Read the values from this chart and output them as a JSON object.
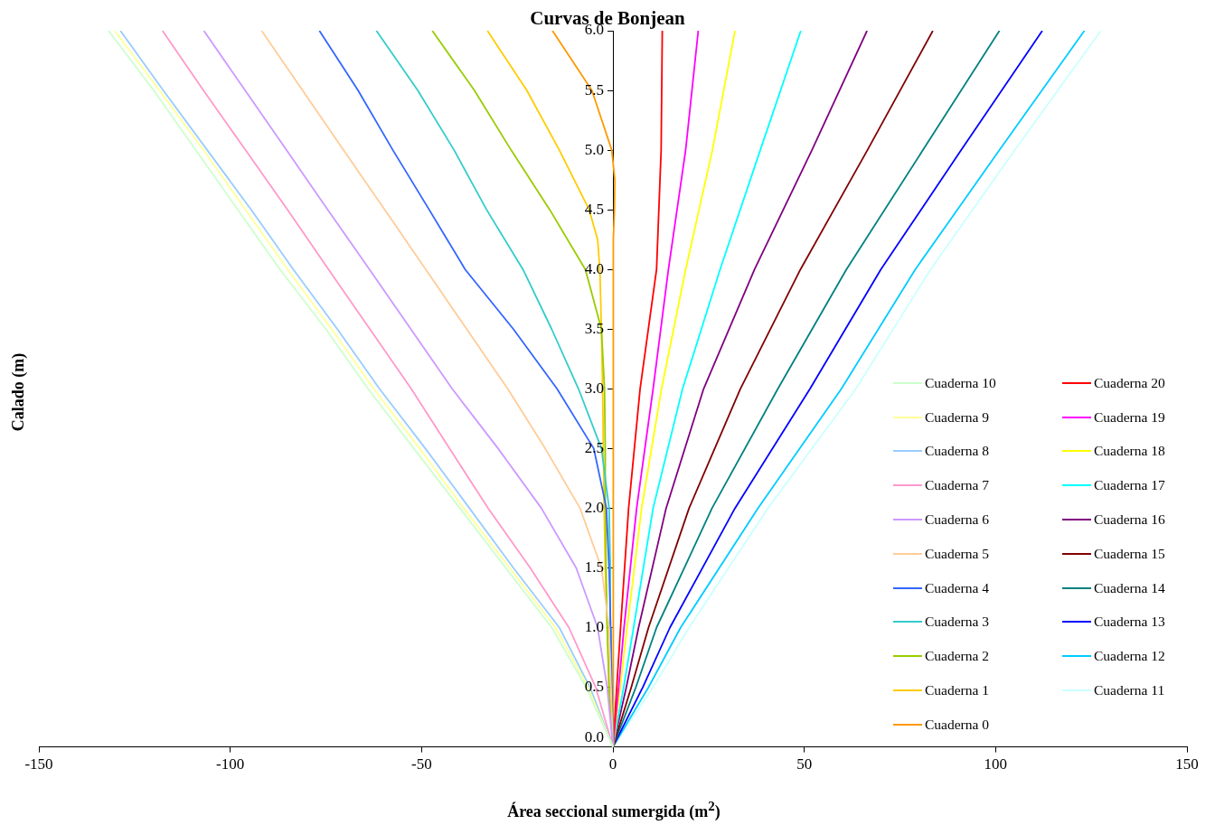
{
  "chart_data": {
    "type": "line",
    "title": "Curvas de Bonjean",
    "xlabel": "Área seccional sumergida (m$^{2}$)",
    "ylabel": "Calado (m)",
    "xlim": [
      -150,
      150
    ],
    "xticks": [
      -150,
      -100,
      -50,
      0,
      50,
      100,
      150
    ],
    "ylim": [
      0,
      6
    ],
    "yticks": [
      {
        "value": 0,
        "label": "0.0"
      },
      {
        "value": 0.5,
        "label": "0.5"
      },
      {
        "value": 1,
        "label": "1.0"
      },
      {
        "value": 1.5,
        "label": "1.5"
      },
      {
        "value": 2,
        "label": "2.0"
      },
      {
        "value": 2.5,
        "label": "2.5"
      },
      {
        "value": 3,
        "label": "3.0"
      },
      {
        "value": 3.5,
        "label": "3.5"
      },
      {
        "value": 4,
        "label": "4.0"
      },
      {
        "value": 4.5,
        "label": "4.5"
      },
      {
        "value": 5,
        "label": "5.0"
      },
      {
        "value": 5.5,
        "label": "5.5"
      },
      {
        "value": 6,
        "label": "6.0"
      }
    ],
    "legend": "right",
    "grid": false,
    "series": [
      {
        "name": "Cuaderna 10",
        "color": "#ccffcc",
        "x": [
          0,
          -7,
          -16,
          -28,
          -40,
          -52,
          -64,
          -75,
          -87,
          -98,
          -109,
          -120,
          -131.8
        ],
        "values": [
          0,
          0.5,
          1,
          1.5,
          2,
          2.5,
          3,
          3.5,
          4,
          4.5,
          5,
          5.5,
          6
        ]
      },
      {
        "name": "Cuaderna 9",
        "color": "#ffff99",
        "x": [
          0,
          -6.5,
          -15,
          -27,
          -39,
          -50.5,
          -62.5,
          -73.5,
          -85,
          -96,
          -107,
          -118.5,
          -130.2
        ],
        "values": [
          0,
          0.5,
          1,
          1.5,
          2,
          2.5,
          3,
          3.5,
          4,
          4.5,
          5,
          5.5,
          6
        ]
      },
      {
        "name": "Cuaderna 8",
        "color": "#99ccff",
        "x": [
          0,
          -6,
          -14,
          -26,
          -37.5,
          -49,
          -61,
          -72,
          -83.5,
          -94.5,
          -106,
          -117.5,
          -128.7
        ],
        "values": [
          0,
          0.5,
          1,
          1.5,
          2,
          2.5,
          3,
          3.5,
          4,
          4.5,
          5,
          5.5,
          6
        ]
      },
      {
        "name": "Cuaderna 7",
        "color": "#ff99cc",
        "x": [
          0,
          -4.5,
          -11.5,
          -21.6,
          -32.6,
          -42.7,
          -52.7,
          -63.5,
          -74.3,
          -85,
          -96,
          -107,
          -117.7
        ],
        "values": [
          0,
          0.5,
          1,
          1.5,
          2,
          2.5,
          3,
          3.5,
          4,
          4.5,
          5,
          5.5,
          6
        ]
      },
      {
        "name": "Cuaderna 6",
        "color": "#cc99ff",
        "x": [
          0,
          -1.5,
          -4,
          -9.6,
          -18.7,
          -30,
          -42,
          -52.8,
          -63.6,
          -74.5,
          -85.3,
          -96.1,
          -106.9
        ],
        "values": [
          0,
          0.5,
          1,
          1.5,
          2,
          2.5,
          3,
          3.5,
          4,
          4.5,
          5,
          5.5,
          6
        ]
      },
      {
        "name": "Cuaderna 5",
        "color": "#ffcc99",
        "x": [
          0,
          -0.5,
          -1,
          -3,
          -8.6,
          -17.7,
          -27.5,
          -38.2,
          -48.9,
          -59.6,
          -70.4,
          -81.1,
          -91.8
        ],
        "values": [
          0,
          0.5,
          1,
          1.5,
          2,
          2.5,
          3,
          3.5,
          4,
          4.5,
          5,
          5.5,
          6
        ]
      },
      {
        "name": "Cuaderna 4",
        "color": "#3366ff",
        "x": [
          0,
          -0.3,
          -0.6,
          -1,
          -1.7,
          -5,
          -14.6,
          -26,
          -38.6,
          -48,
          -57.5,
          -66.6,
          -76.7
        ],
        "values": [
          0,
          0.5,
          1,
          1.5,
          2,
          2.5,
          3,
          3.5,
          4,
          4.5,
          5,
          5.5,
          6
        ]
      },
      {
        "name": "Cuaderna 3",
        "color": "#33cccc",
        "x": [
          0,
          -0.3,
          -0.5,
          -0.7,
          -1,
          -3,
          -9,
          -16,
          -23.5,
          -33,
          -41.5,
          -51,
          -61.8
        ],
        "values": [
          0,
          0.5,
          1,
          1.5,
          2,
          2.5,
          3,
          3.5,
          4,
          4.5,
          5,
          5.5,
          6
        ]
      },
      {
        "name": "Cuaderna 2",
        "color": "#99cc00",
        "x": [
          0,
          -1,
          -1.5,
          -1.8,
          -1.9,
          -2,
          -2.2,
          -3,
          -7.2,
          -16.5,
          -26.6,
          -36.2,
          -47.2
        ],
        "values": [
          0,
          0.5,
          1,
          1.5,
          2,
          2.5,
          3,
          3.5,
          4,
          4.5,
          5,
          5.5,
          6
        ]
      },
      {
        "name": "Cuaderna 1",
        "color": "#ffcc00",
        "x": [
          0,
          -1,
          -1.5,
          -2,
          -2.3,
          -2.5,
          -2.7,
          -3,
          -3.4,
          -4,
          -6.2,
          -14,
          -22.5,
          -32.8
        ],
        "values": [
          0,
          0.5,
          1,
          1.5,
          2,
          2.5,
          3,
          3.5,
          4,
          4.25,
          4.5,
          5,
          5.5,
          6
        ]
      },
      {
        "name": "Cuaderna 0",
        "color": "#ff9900",
        "x": [
          0,
          0.1,
          0.4,
          0.5,
          -0.3,
          -5.5,
          -15.8
        ],
        "values": [
          0,
          4.25,
          4.5,
          4.75,
          5,
          5.5,
          6
        ]
      },
      {
        "name": "Cuaderna 20",
        "color": "#ff0000",
        "x": [
          0,
          1,
          2,
          4.1,
          7.1,
          11.4,
          12.6,
          12.9
        ],
        "values": [
          0,
          0.5,
          1,
          2,
          3,
          4,
          5,
          6
        ]
      },
      {
        "name": "Cuaderna 19",
        "color": "#ff00ff",
        "x": [
          0,
          1.5,
          2.9,
          6.2,
          10.5,
          14.5,
          19,
          22.3
        ],
        "values": [
          0,
          0.5,
          1,
          2,
          3,
          4,
          5,
          6
        ]
      },
      {
        "name": "Cuaderna 18",
        "color": "#ffff00",
        "x": [
          0,
          1.9,
          3.7,
          7.5,
          12.7,
          19,
          26,
          31.9
        ],
        "values": [
          0,
          0.5,
          1,
          2,
          3,
          4,
          5,
          6
        ]
      },
      {
        "name": "Cuaderna 17",
        "color": "#00ffff",
        "x": [
          0,
          2.8,
          5.4,
          10.5,
          18.2,
          28,
          38.5,
          49.1
        ],
        "values": [
          0,
          0.5,
          1,
          2,
          3,
          4,
          5,
          6
        ]
      },
      {
        "name": "Cuaderna 16",
        "color": "#800080",
        "x": [
          0,
          3.5,
          6.7,
          13.9,
          23.7,
          37,
          52,
          66.4
        ],
        "values": [
          0,
          0.5,
          1,
          2,
          3,
          4,
          5,
          6
        ]
      },
      {
        "name": "Cuaderna 15",
        "color": "#800000",
        "x": [
          0,
          4.8,
          9.3,
          19.9,
          33.3,
          49,
          66.5,
          83.6
        ],
        "values": [
          0,
          0.5,
          1,
          2,
          3,
          4,
          5,
          6
        ]
      },
      {
        "name": "Cuaderna 14",
        "color": "#008080",
        "x": [
          0,
          6,
          11.4,
          25.9,
          43.1,
          61,
          81,
          101
        ],
        "values": [
          0,
          0.5,
          1,
          2,
          3,
          4,
          5,
          6
        ]
      },
      {
        "name": "Cuaderna 13",
        "color": "#0000ff",
        "x": [
          0,
          7.8,
          14.9,
          31.9,
          51.5,
          70,
          91,
          112.2
        ],
        "values": [
          0,
          0.5,
          1,
          2,
          3,
          4,
          5,
          6
        ]
      },
      {
        "name": "Cuaderna 12",
        "color": "#00ccff",
        "x": [
          0,
          9.3,
          17.7,
          37.9,
          59.7,
          79,
          101,
          123.2
        ],
        "values": [
          0,
          0.5,
          1,
          2,
          3,
          4,
          5,
          6
        ]
      },
      {
        "name": "Cuaderna 11",
        "color": "#ccffff",
        "x": [
          0,
          10.5,
          19.9,
          40.5,
          63.5,
          83,
          105,
          127.5
        ],
        "values": [
          0,
          0.5,
          1,
          2,
          3,
          4,
          5,
          6
        ]
      }
    ]
  }
}
